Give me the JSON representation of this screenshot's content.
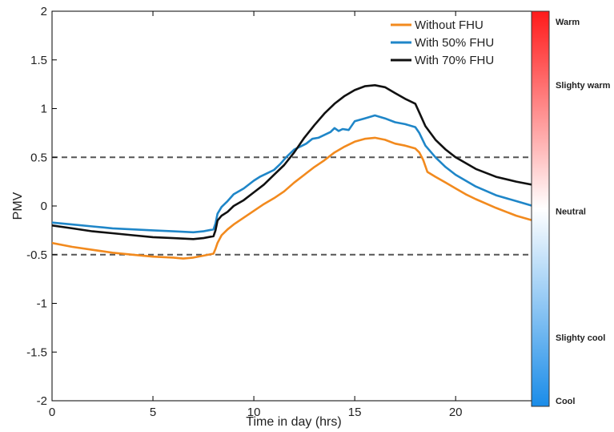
{
  "chart_data": {
    "type": "line",
    "title": "",
    "xlabel": "Time in day (hrs)",
    "ylabel": "PMV",
    "xlim": [
      0,
      24
    ],
    "ylim": [
      -2,
      2
    ],
    "xticks": [
      0,
      5,
      10,
      15,
      20
    ],
    "yticks": [
      -2,
      -1.5,
      -1,
      -0.5,
      0,
      0.5,
      1,
      1.5,
      2
    ],
    "xtick_labels": [
      "0",
      "5",
      "10",
      "15",
      "20"
    ],
    "ytick_labels": [
      "-2",
      "-1.5",
      "-1",
      "-0.5",
      "0",
      "0.5",
      "1",
      "1.5",
      "2"
    ],
    "grid": false,
    "legend_position": "top-right",
    "reference_lines": [
      {
        "y": 0.5,
        "style": "dashed",
        "color": "#555555"
      },
      {
        "y": -0.5,
        "style": "dashed",
        "color": "#555555"
      }
    ],
    "series": [
      {
        "name": "Without FHU",
        "color": "#F28A1E",
        "x": [
          0,
          1,
          2,
          3,
          4,
          5,
          6,
          6.5,
          7,
          7.5,
          8,
          8.1,
          8.2,
          8.4,
          8.7,
          9,
          9.5,
          10,
          10.5,
          11,
          11.5,
          12,
          12.5,
          13,
          13.5,
          14,
          14.5,
          15,
          15.5,
          16,
          16.5,
          17,
          17.5,
          18,
          18.2,
          18.4,
          18.6,
          19,
          19.5,
          20,
          20.5,
          21,
          22,
          23,
          24
        ],
        "values": [
          -0.38,
          -0.42,
          -0.45,
          -0.48,
          -0.5,
          -0.52,
          -0.53,
          -0.54,
          -0.53,
          -0.51,
          -0.49,
          -0.44,
          -0.38,
          -0.3,
          -0.24,
          -0.19,
          -0.12,
          -0.05,
          0.02,
          0.08,
          0.15,
          0.24,
          0.32,
          0.4,
          0.47,
          0.55,
          0.61,
          0.66,
          0.69,
          0.7,
          0.68,
          0.64,
          0.62,
          0.59,
          0.55,
          0.47,
          0.35,
          0.3,
          0.24,
          0.18,
          0.12,
          0.07,
          -0.02,
          -0.1,
          -0.16
        ]
      },
      {
        "name": "With 50% FHU",
        "color": "#1F86C8",
        "x": [
          0,
          1,
          2,
          3,
          4,
          5,
          6,
          7,
          7.5,
          8,
          8.1,
          8.2,
          8.4,
          8.7,
          9,
          9.5,
          10,
          10.3,
          10.6,
          11,
          11.3,
          11.6,
          12,
          12.3,
          12.6,
          12.9,
          13.2,
          13.5,
          13.8,
          14,
          14.2,
          14.4,
          14.7,
          15,
          15.5,
          16,
          16.5,
          17,
          17.5,
          18,
          18.2,
          18.5,
          19,
          19.5,
          20,
          21,
          22,
          23,
          24
        ],
        "values": [
          -0.17,
          -0.19,
          -0.21,
          -0.23,
          -0.24,
          -0.25,
          -0.26,
          -0.27,
          -0.26,
          -0.24,
          -0.18,
          -0.08,
          -0.01,
          0.05,
          0.12,
          0.18,
          0.26,
          0.3,
          0.33,
          0.37,
          0.43,
          0.5,
          0.58,
          0.61,
          0.64,
          0.69,
          0.7,
          0.73,
          0.76,
          0.8,
          0.77,
          0.79,
          0.78,
          0.87,
          0.9,
          0.93,
          0.9,
          0.86,
          0.84,
          0.81,
          0.75,
          0.62,
          0.5,
          0.4,
          0.32,
          0.2,
          0.11,
          0.05,
          -0.01
        ]
      },
      {
        "name": "With 70% FHU",
        "color": "#111111",
        "x": [
          0,
          1,
          2,
          3,
          4,
          5,
          6,
          7,
          7.5,
          8,
          8.1,
          8.2,
          8.4,
          8.7,
          9,
          9.5,
          10,
          10.5,
          11,
          11.5,
          12,
          12.5,
          13,
          13.5,
          14,
          14.5,
          15,
          15.5,
          16,
          16.5,
          17,
          17.5,
          18,
          18.2,
          18.5,
          19,
          19.5,
          20,
          21,
          22,
          23,
          24
        ],
        "values": [
          -0.2,
          -0.23,
          -0.26,
          -0.28,
          -0.3,
          -0.32,
          -0.33,
          -0.34,
          -0.33,
          -0.31,
          -0.25,
          -0.15,
          -0.1,
          -0.06,
          0.0,
          0.06,
          0.14,
          0.22,
          0.32,
          0.42,
          0.55,
          0.7,
          0.83,
          0.95,
          1.05,
          1.13,
          1.19,
          1.23,
          1.24,
          1.22,
          1.16,
          1.1,
          1.05,
          0.96,
          0.82,
          0.68,
          0.58,
          0.5,
          0.38,
          0.3,
          0.25,
          0.21
        ]
      }
    ]
  },
  "colorbar": {
    "top_color": "#FF1A1A",
    "mid_color": "#FFFFFF",
    "bottom_color": "#1A8CE8",
    "labels": [
      {
        "text": "Warm",
        "level": 3
      },
      {
        "text": "Slighty warm",
        "level": 2
      },
      {
        "text": "Neutral",
        "level": 0
      },
      {
        "text": "Slighty cool",
        "level": -2
      },
      {
        "text": "Cool",
        "level": -3
      }
    ]
  }
}
